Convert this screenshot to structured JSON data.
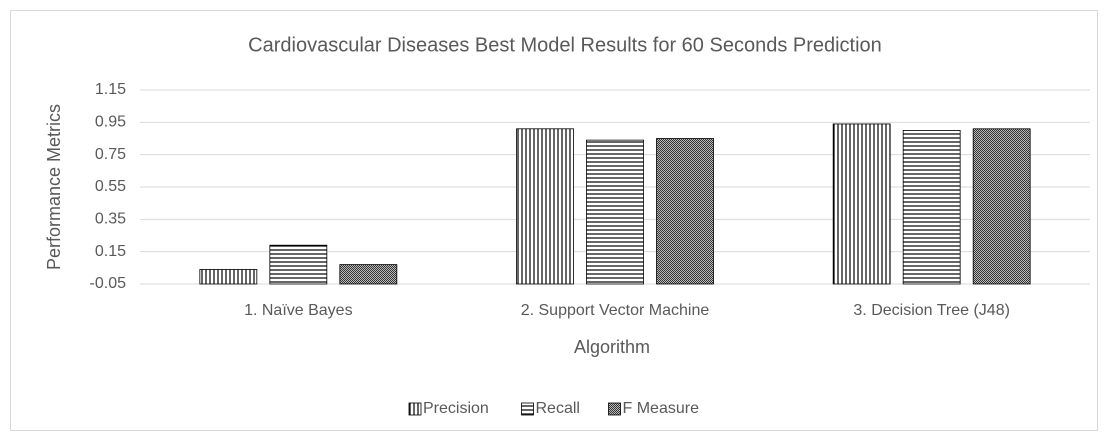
{
  "chart_data": {
    "type": "bar",
    "title": "Cardiovascular Diseases Best Model Results for 60 Seconds Prediction",
    "x_label": "Algorithm",
    "y_label": "Performance Metrics",
    "categories": [
      "1. Naïve Bayes",
      "2. Support Vector Machine",
      "3. Decision Tree (J48)"
    ],
    "series": [
      {
        "name": "Precision",
        "color": "#000000",
        "pattern": "vertical",
        "values": [
          0.04,
          0.91,
          0.94
        ]
      },
      {
        "name": "Recall",
        "color": "#000000",
        "pattern": "horizontal",
        "values": [
          0.19,
          0.84,
          0.9
        ]
      },
      {
        "name": "F Measure",
        "color": "#000000",
        "pattern": "checker",
        "values": [
          0.07,
          0.85,
          0.91
        ]
      }
    ],
    "ylim": [
      -0.05,
      1.15
    ],
    "yticks": [
      -0.05,
      0.15,
      0.35,
      0.55,
      0.75,
      0.95,
      1.15
    ],
    "grid": true,
    "legend": "bottom"
  }
}
